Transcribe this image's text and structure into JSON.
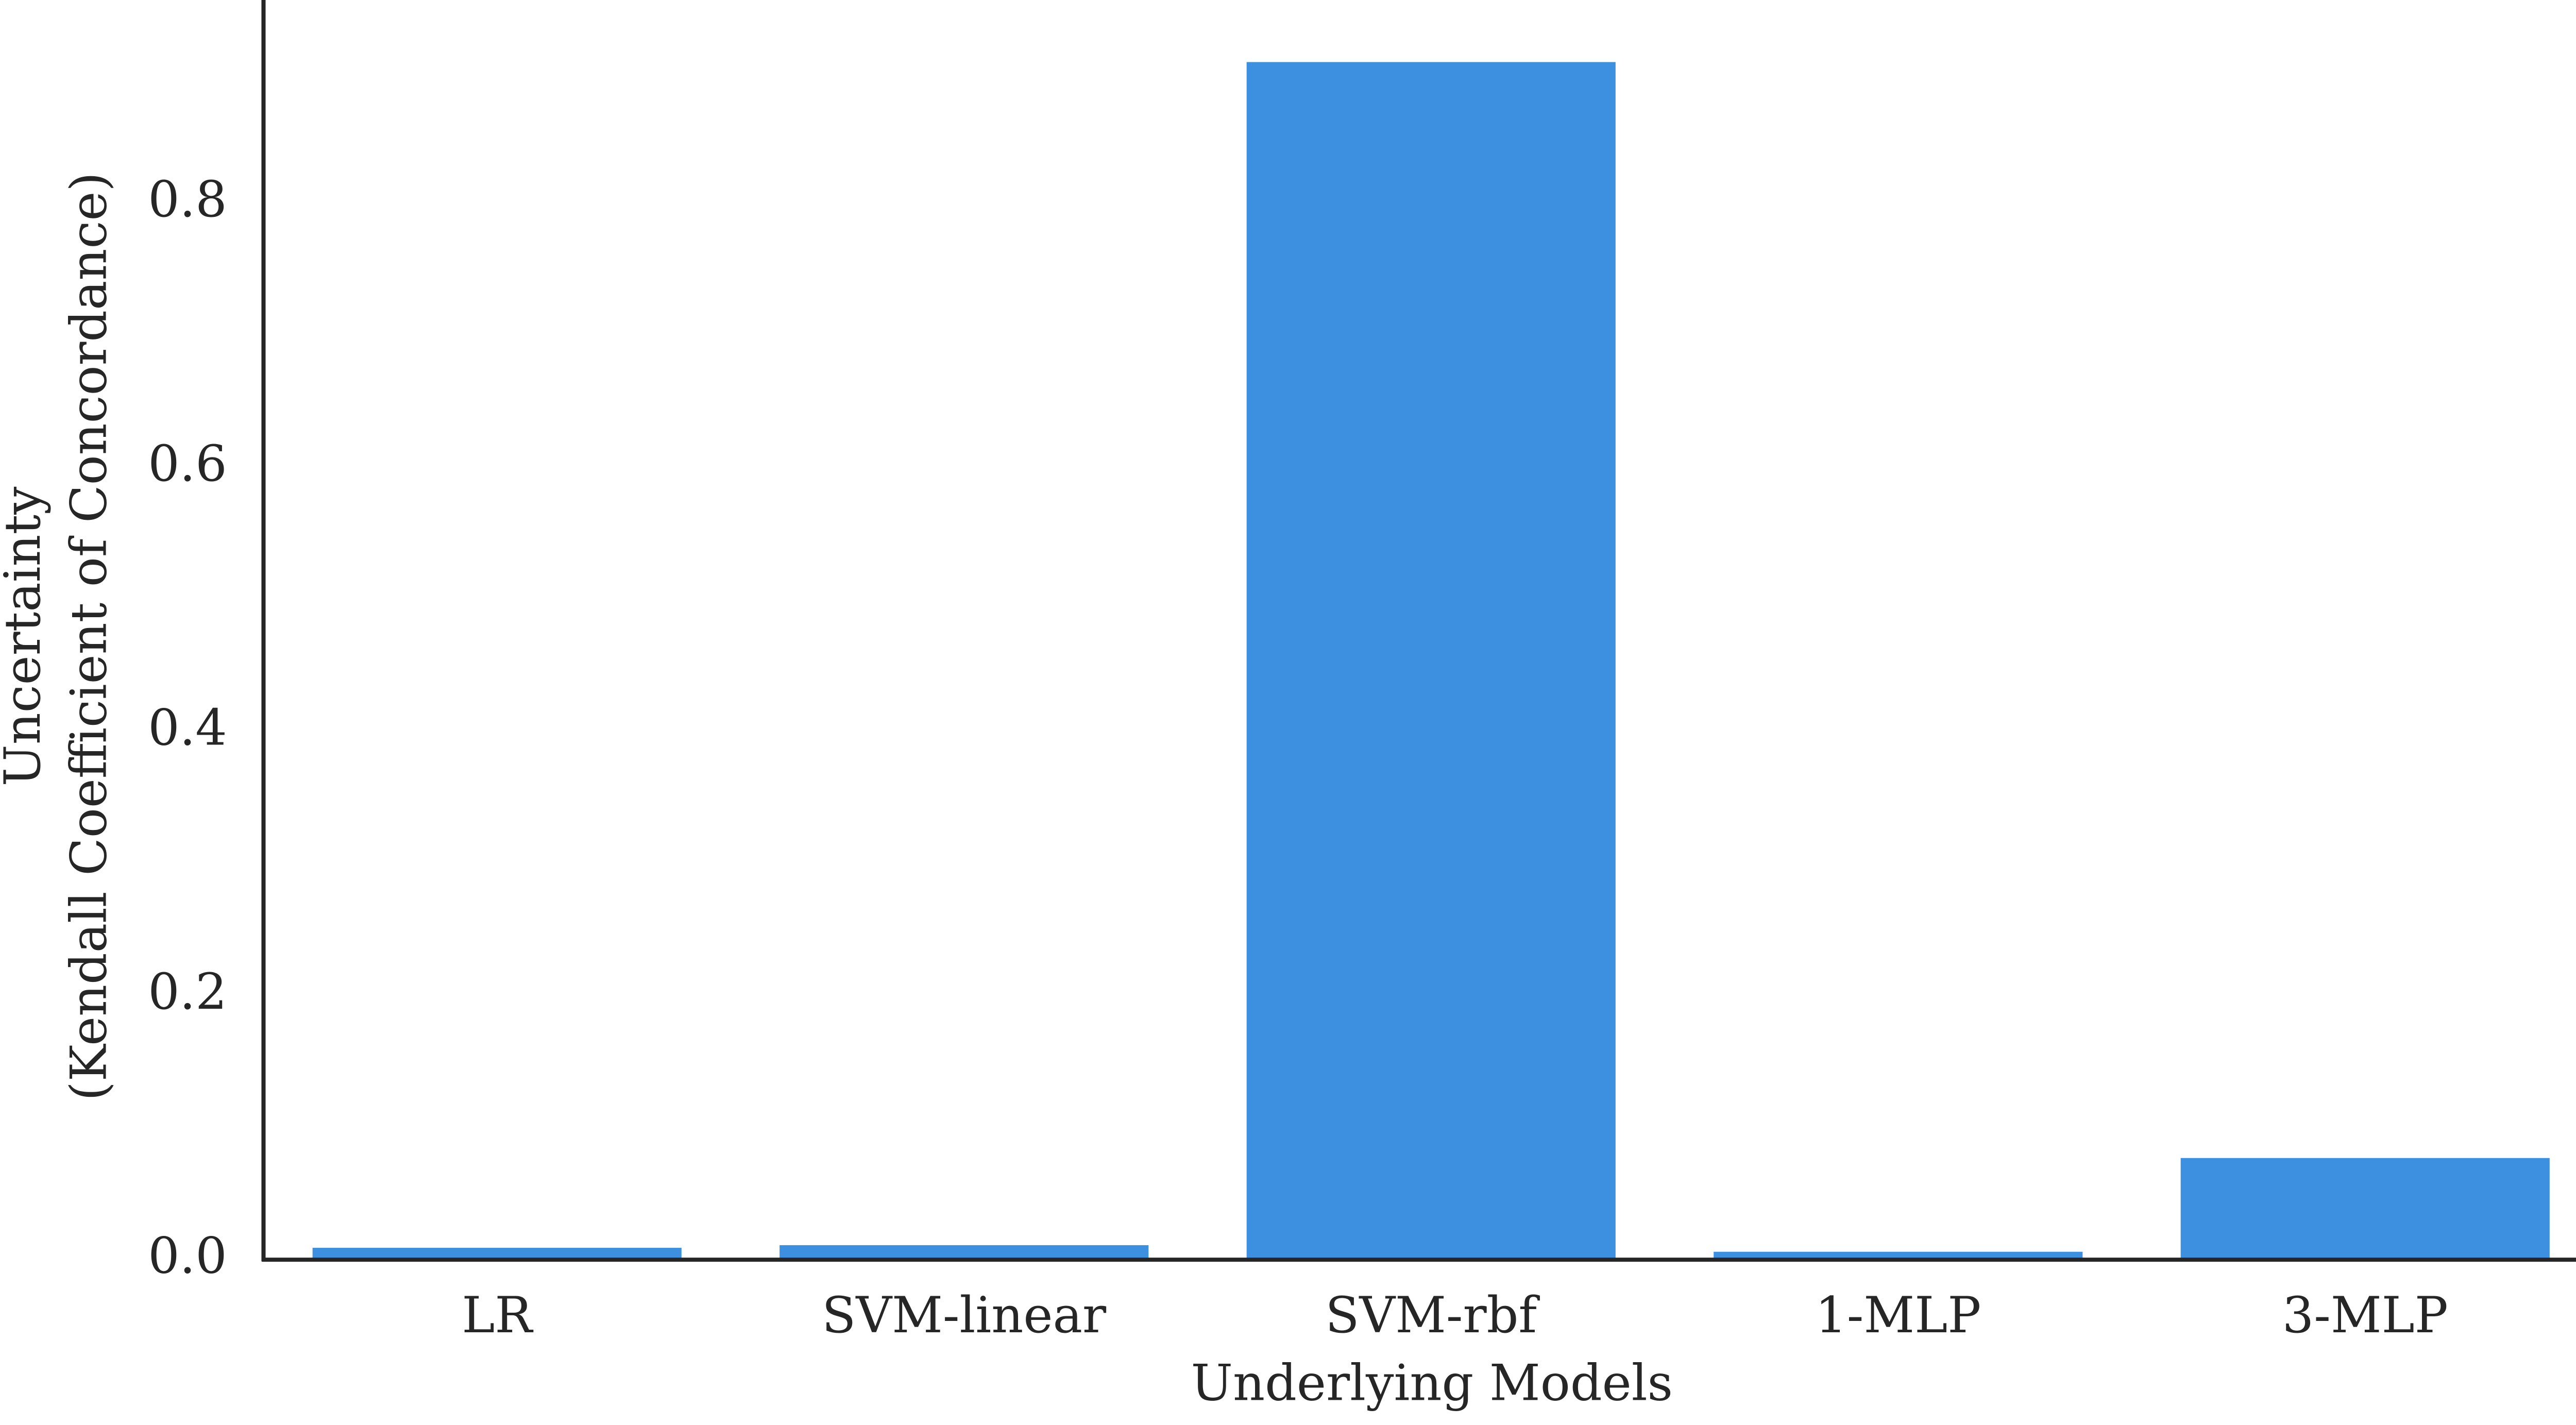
{
  "chart_data": {
    "type": "bar",
    "xlabel": "Underlying Models",
    "ylabel": [
      "Uncertainty",
      "(Kendall Coefficient of Concordance)"
    ],
    "categories": [
      "LR",
      "SVM-linear",
      "SVM-rbf",
      "1-MLP",
      "3-MLP"
    ],
    "values": [
      0.009,
      0.011,
      0.907,
      0.006,
      0.077
    ],
    "color": "#3d8fe0",
    "ylim": [
      0,
      0.954
    ],
    "yticks": [
      {
        "value": 0,
        "label": "0.0"
      },
      0.2,
      0.4,
      0.6,
      0.8
    ],
    "grid": false
  }
}
